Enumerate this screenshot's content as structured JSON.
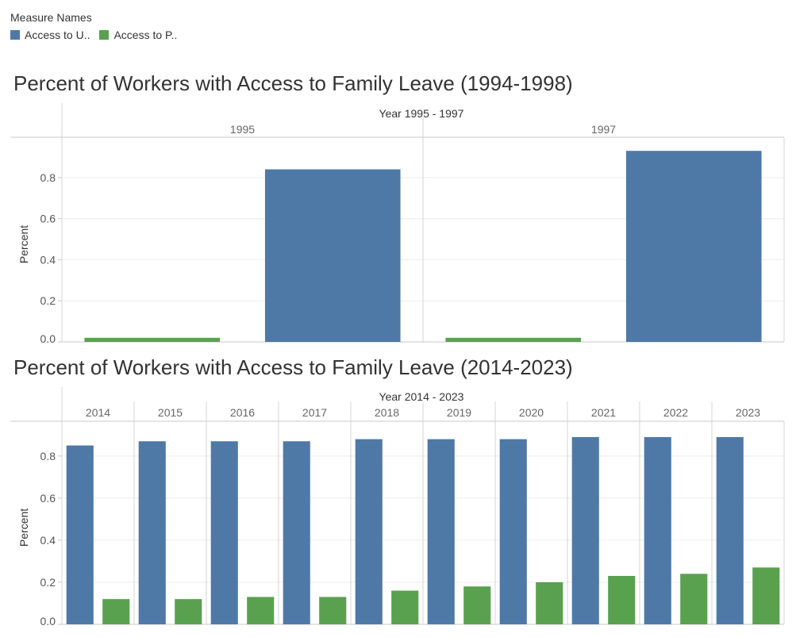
{
  "legend": {
    "title": "Measure Names",
    "items": [
      {
        "label": "Access to U..",
        "color": "#4e79a7"
      },
      {
        "label": "Access to P..",
        "color": "#59a14f"
      }
    ]
  },
  "chart_data": [
    {
      "type": "bar",
      "title": "Percent of Workers with Access to Family Leave (1994-1998)",
      "header": "Year 1995 - 1997",
      "ylabel": "Percent",
      "ylim": [
        0,
        0.95
      ],
      "yticks": [
        "0.0",
        "0.2",
        "0.4",
        "0.6",
        "0.8"
      ],
      "categories": [
        "1995",
        "1997"
      ],
      "series": [
        {
          "color": "#59a14f",
          "values": [
            0.02,
            0.02
          ]
        },
        {
          "color": "#4e79a7",
          "values": [
            0.84,
            0.93
          ]
        }
      ],
      "bar_order": [
        0,
        1
      ]
    },
    {
      "type": "bar",
      "title": "Percent of Workers with Access to Family Leave (2014-2023)",
      "header": "Year 2014 - 2023",
      "ylabel": "Percent",
      "ylim": [
        0,
        0.92
      ],
      "yticks": [
        "0.0",
        "0.2",
        "0.4",
        "0.6",
        "0.8"
      ],
      "categories": [
        "2014",
        "2015",
        "2016",
        "2017",
        "2018",
        "2019",
        "2020",
        "2021",
        "2022",
        "2023"
      ],
      "series": [
        {
          "color": "#4e79a7",
          "values": [
            0.85,
            0.87,
            0.87,
            0.87,
            0.88,
            0.88,
            0.88,
            0.89,
            0.89,
            0.89
          ]
        },
        {
          "color": "#59a14f",
          "values": [
            0.12,
            0.12,
            0.13,
            0.13,
            0.16,
            0.18,
            0.2,
            0.23,
            0.24,
            0.27
          ]
        }
      ],
      "bar_order": [
        0,
        1
      ]
    }
  ]
}
